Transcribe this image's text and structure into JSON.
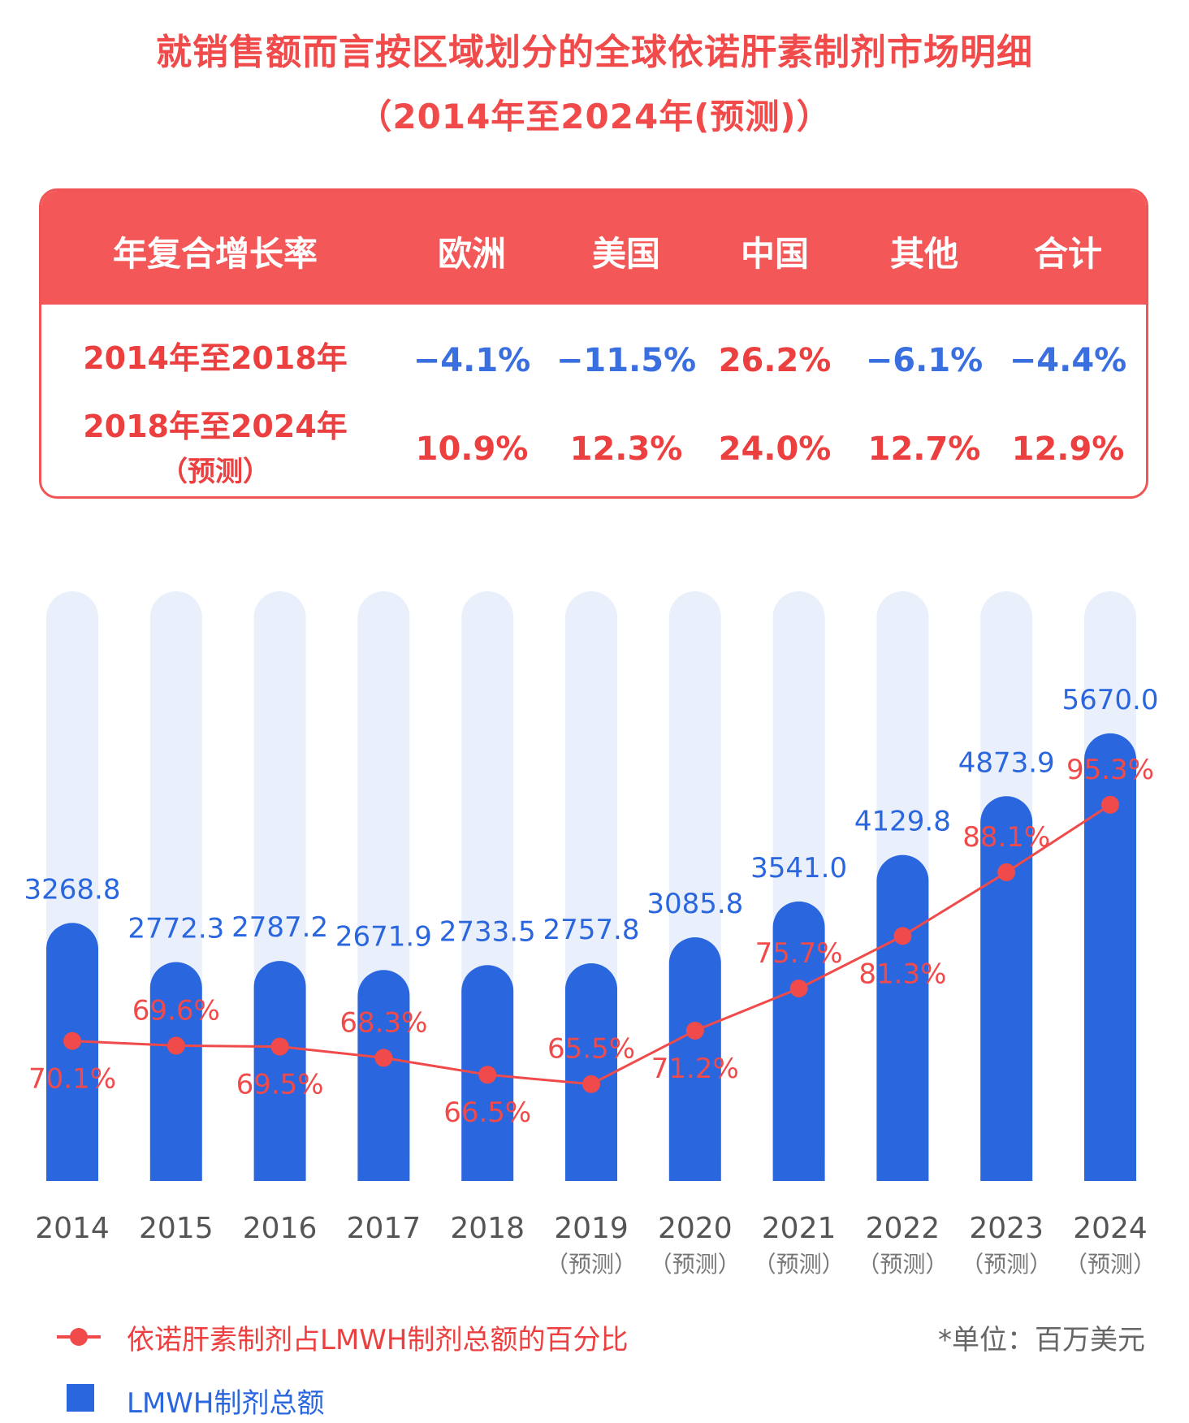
{
  "title": "就销售额而言按区域划分的全球依诺肝素制剂市场明细",
  "subtitle": "（2014年至2024年(预测)）",
  "cagr_table": {
    "header": [
      "年复合增长率",
      "欧洲",
      "美国",
      "中国",
      "其他",
      "合计"
    ],
    "rows": [
      {
        "label": "2014年至2018年",
        "sub": "",
        "values": [
          "−4.1%",
          "−11.5%",
          "26.2%",
          "−6.1%",
          "−4.4%"
        ]
      },
      {
        "label": "2018年至2024年",
        "sub": "（预测）",
        "values": [
          "10.9%",
          "12.3%",
          "24.0%",
          "12.7%",
          "12.9%"
        ]
      }
    ]
  },
  "chart_data": {
    "type": "bar",
    "categories": [
      "2014",
      "2015",
      "2016",
      "2017",
      "2018",
      "2019",
      "2020",
      "2021",
      "2022",
      "2023",
      "2024"
    ],
    "category_sub": [
      "",
      "",
      "",
      "",
      "",
      "（预测）",
      "（预测）",
      "（预测）",
      "（预测）",
      "（预测）",
      "（预测）"
    ],
    "series": [
      {
        "name": "LMWH制剂总额",
        "type": "bar",
        "color": "#2a66de",
        "values": [
          3268.8,
          2772.3,
          2787.2,
          2671.9,
          2733.5,
          2757.8,
          3085.8,
          3541.0,
          4129.8,
          4873.9,
          5670.0
        ],
        "labels": [
          "3268.8",
          "2772.3",
          "2787.2",
          "2671.9",
          "2733.5",
          "2757.8",
          "3085.8",
          "3541.0",
          "4129.8",
          "4873.9",
          "5670.0"
        ]
      },
      {
        "name": "依诺肝素制剂占LMWH制剂总额的百分比",
        "type": "line",
        "color": "#f04a4a",
        "values": [
          70.1,
          69.6,
          69.5,
          68.3,
          66.5,
          65.5,
          71.2,
          75.7,
          81.3,
          88.1,
          95.3
        ],
        "labels": [
          "70.1%",
          "69.6%",
          "69.5%",
          "68.3%",
          "66.5%",
          "65.5%",
          "71.2%",
          "75.7%",
          "81.3%",
          "88.1%",
          "95.3%"
        ]
      }
    ],
    "unit_note": "*单位：百万美元",
    "legend_position": "bottom-left",
    "grid": false
  },
  "colors": {
    "accent_red": "#f04a4a",
    "bar_blue": "#2a66de",
    "track": "#eaf0fb"
  }
}
